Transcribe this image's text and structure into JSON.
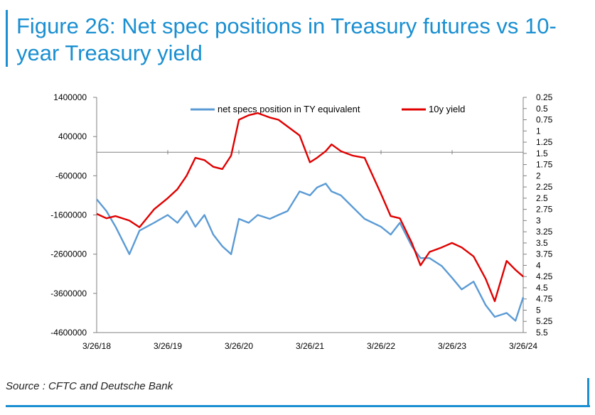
{
  "figure": {
    "title": "Figure 26: Net spec positions in Treasury futures vs 10-year Treasury yield",
    "source": "Source : CFTC and Deutsche Bank"
  },
  "colors": {
    "accent": "#1a8fd1",
    "series_blue": "#5b9bd5",
    "series_red": "#e00000"
  },
  "chart_data": {
    "type": "line",
    "title": "",
    "xlabel": "",
    "ylabel": "",
    "ylabel_right": "",
    "grid": false,
    "legend_position": "top",
    "x_ticks": [
      "3/26/18",
      "3/26/19",
      "3/26/20",
      "3/26/21",
      "3/26/22",
      "3/26/23",
      "3/26/24"
    ],
    "y_left_ticks": [
      "1400000",
      "400000",
      "-600000",
      "-1600000",
      "-2600000",
      "-3600000",
      "-4600000"
    ],
    "y_left_range": [
      -4600000,
      1400000
    ],
    "y_right_ticks": [
      "0.25",
      "0.5",
      "0.75",
      "1",
      "1.25",
      "1.5",
      "1.75",
      "2",
      "2.25",
      "2.5",
      "2.75",
      "3",
      "3.25",
      "3.5",
      "3.75",
      "4",
      "4.25",
      "4.5",
      "4.75",
      "5",
      "5.25",
      "5.5"
    ],
    "y_right_range": [
      0.25,
      5.5
    ],
    "y_right_inverted": true,
    "series": [
      {
        "name": "net specs position in TY equivalent",
        "axis": "left",
        "x": [
          "2018-03-26",
          "2018-05-15",
          "2018-07-01",
          "2018-09-10",
          "2018-11-01",
          "2019-01-15",
          "2019-03-26",
          "2019-05-15",
          "2019-07-01",
          "2019-08-15",
          "2019-10-01",
          "2019-11-15",
          "2020-01-01",
          "2020-02-15",
          "2020-03-26",
          "2020-05-15",
          "2020-07-01",
          "2020-09-01",
          "2020-10-15",
          "2020-12-01",
          "2021-02-01",
          "2021-03-26",
          "2021-05-01",
          "2021-06-15",
          "2021-07-15",
          "2021-09-01",
          "2021-11-01",
          "2022-01-01",
          "2022-03-26",
          "2022-05-15",
          "2022-07-01",
          "2022-09-01",
          "2022-10-15",
          "2022-12-01",
          "2023-02-01",
          "2023-03-26",
          "2023-05-15",
          "2023-07-15",
          "2023-09-15",
          "2023-11-01",
          "2024-01-01",
          "2024-02-15",
          "2024-03-26"
        ],
        "values": [
          -1200000,
          -1500000,
          -1900000,
          -2600000,
          -2000000,
          -1800000,
          -1600000,
          -1800000,
          -1500000,
          -1900000,
          -1600000,
          -2100000,
          -2400000,
          -2600000,
          -1700000,
          -1800000,
          -1600000,
          -1700000,
          -1600000,
          -1500000,
          -1000000,
          -1100000,
          -900000,
          -800000,
          -1000000,
          -1100000,
          -1400000,
          -1700000,
          -1900000,
          -2100000,
          -1800000,
          -2400000,
          -2700000,
          -2700000,
          -2900000,
          -3200000,
          -3500000,
          -3300000,
          -3900000,
          -4200000,
          -4100000,
          -4300000,
          -3700000
        ]
      },
      {
        "name": "10y yield",
        "axis": "right",
        "x": [
          "2018-03-26",
          "2018-05-15",
          "2018-07-01",
          "2018-09-10",
          "2018-11-01",
          "2019-01-15",
          "2019-03-26",
          "2019-05-15",
          "2019-07-01",
          "2019-08-15",
          "2019-10-01",
          "2019-11-15",
          "2020-01-01",
          "2020-02-15",
          "2020-03-26",
          "2020-05-15",
          "2020-07-01",
          "2020-09-01",
          "2020-10-15",
          "2020-12-01",
          "2021-02-01",
          "2021-03-26",
          "2021-05-01",
          "2021-06-15",
          "2021-07-15",
          "2021-09-01",
          "2021-11-01",
          "2022-01-01",
          "2022-03-26",
          "2022-05-15",
          "2022-07-01",
          "2022-09-01",
          "2022-10-15",
          "2022-12-01",
          "2023-02-01",
          "2023-03-26",
          "2023-05-15",
          "2023-07-15",
          "2023-09-15",
          "2023-11-01",
          "2024-01-01",
          "2024-02-15",
          "2024-03-26"
        ],
        "values": [
          2.85,
          2.95,
          2.9,
          3.0,
          3.15,
          2.75,
          2.5,
          2.3,
          2.0,
          1.6,
          1.65,
          1.8,
          1.85,
          1.55,
          0.75,
          0.65,
          0.6,
          0.7,
          0.75,
          0.9,
          1.1,
          1.7,
          1.6,
          1.45,
          1.3,
          1.45,
          1.55,
          1.6,
          2.4,
          2.9,
          2.95,
          3.5,
          4.0,
          3.7,
          3.6,
          3.5,
          3.6,
          3.8,
          4.3,
          4.8,
          3.9,
          4.1,
          4.25
        ]
      }
    ]
  }
}
